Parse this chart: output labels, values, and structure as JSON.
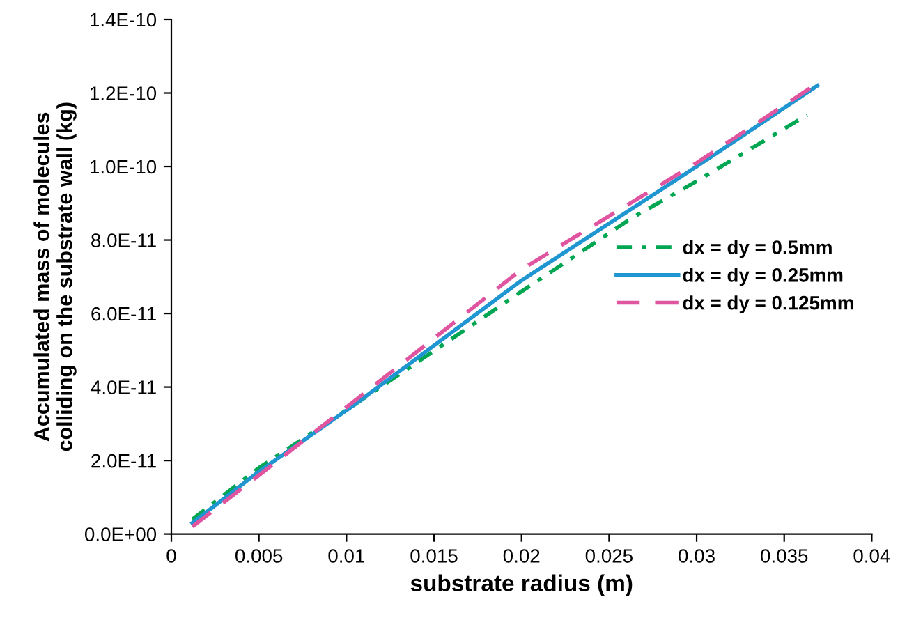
{
  "chart_data": {
    "type": "line",
    "xlabel": "substrate radius (m)",
    "ylabel": "Accumulated mass of molecules\ncolliding on the substrate wall (kg)",
    "xlim": [
      0,
      0.04
    ],
    "xticks": [
      0,
      0.005,
      0.01,
      0.015,
      0.02,
      0.025,
      0.03,
      0.035,
      0.04
    ],
    "ylim": [
      0,
      1.4e-10
    ],
    "yticks": [
      {
        "value": 0,
        "label": "0.0E+00"
      },
      {
        "value": 2e-11,
        "label": "2.0E-11"
      },
      {
        "value": 4e-11,
        "label": "4.0E-11"
      },
      {
        "value": 6e-11,
        "label": "6.0E-11"
      },
      {
        "value": 8e-11,
        "label": "8.0E-11"
      },
      {
        "value": 1e-10,
        "label": "1.0E-10"
      },
      {
        "value": 1.2e-10,
        "label": "1.2E-10"
      },
      {
        "value": 1.4e-10,
        "label": "1.4E-10"
      }
    ],
    "grid": false,
    "legend": "right",
    "marker": "none",
    "series": [
      {
        "name": "dx = dy = 0.5mm",
        "color": "#00a651",
        "line_style": "dashdot",
        "x": [
          0.0012,
          0.005,
          0.0104,
          0.02,
          0.0263,
          0.03,
          0.0363
        ],
        "values": [
          4e-12,
          1.8e-11,
          3.5e-11,
          6.6e-11,
          8.6e-11,
          9.6e-11,
          1.14e-10
        ]
      },
      {
        "name": "dx = dy = 0.25mm",
        "color": "#1f96d2",
        "line_style": "solid",
        "x": [
          0.0012,
          0.005,
          0.0104,
          0.02,
          0.03,
          0.0369
        ],
        "values": [
          3e-12,
          1.7e-11,
          3.5e-11,
          6.9e-11,
          1e-10,
          1.22e-10
        ]
      },
      {
        "name": "dx = dy = 0.125mm",
        "color": "#e0559f",
        "line_style": "dashed",
        "x": [
          0.0012,
          0.005,
          0.0104,
          0.02,
          0.03,
          0.0367
        ],
        "values": [
          2e-12,
          1.6e-11,
          3.6e-11,
          7.2e-11,
          1.01e-10,
          1.22e-10
        ]
      }
    ]
  }
}
